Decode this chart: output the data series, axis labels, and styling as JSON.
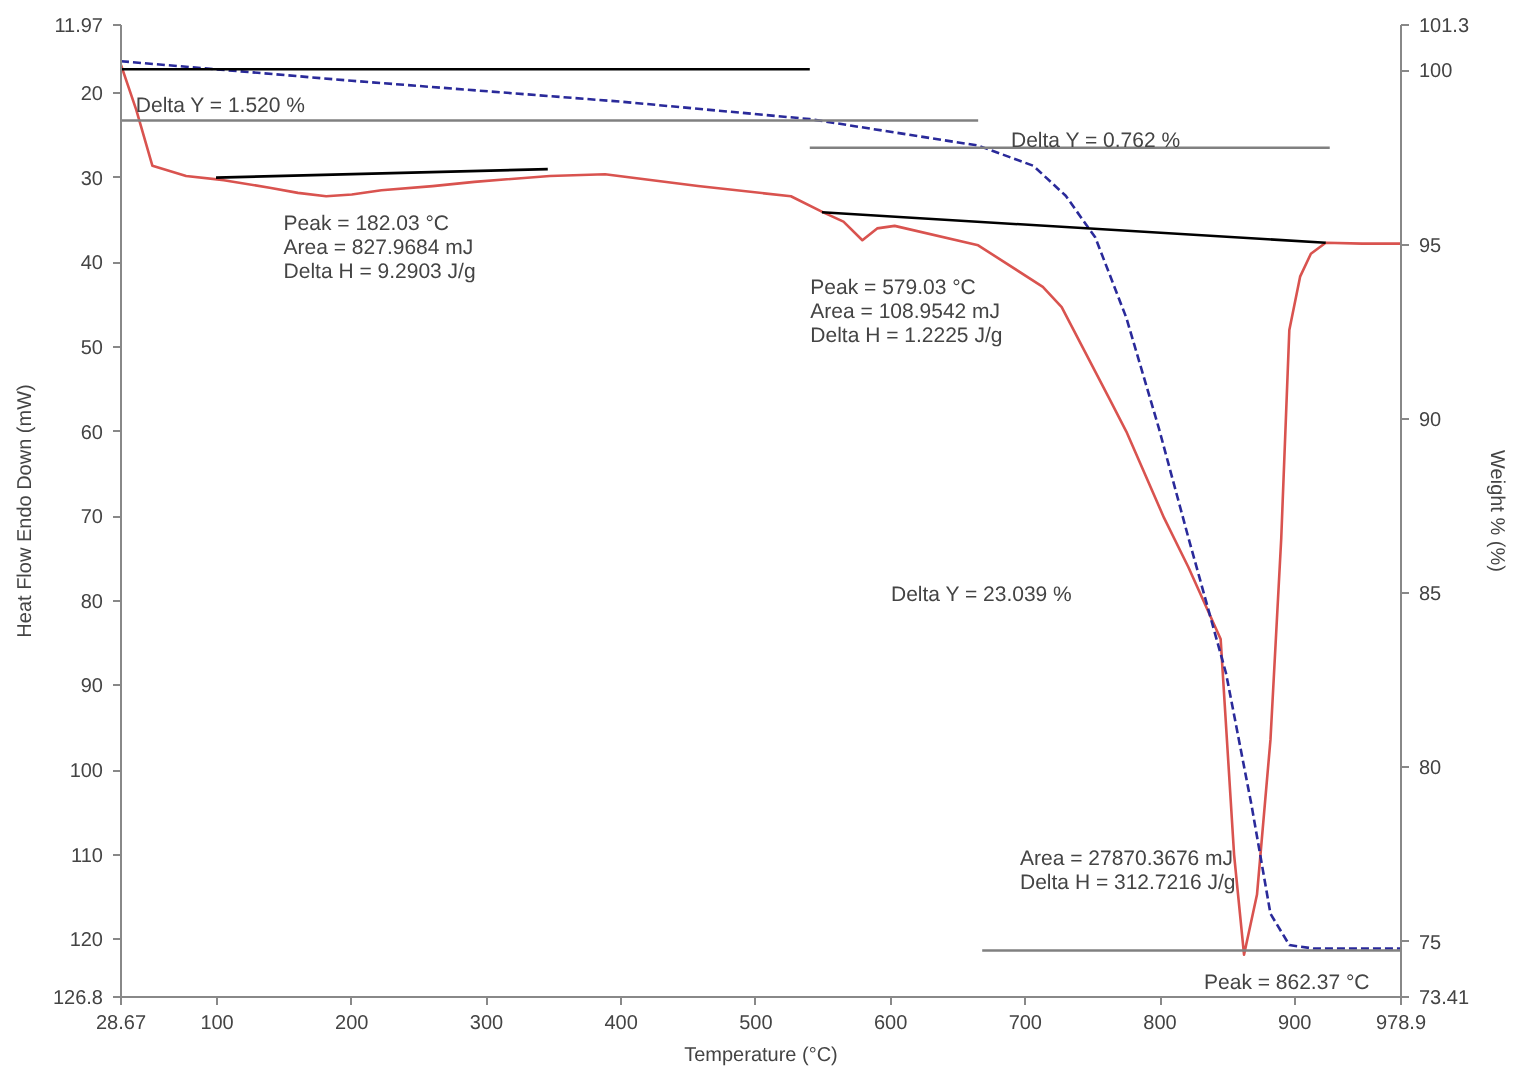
{
  "chart_data": {
    "type": "line",
    "xlabel": "Temperature (°C)",
    "ylabel": "Heat Flow Endo Down (mW)",
    "y2label": "Weight % (%)",
    "xlim": [
      28.67,
      978.9
    ],
    "xticks": [
      28.67,
      100,
      200,
      300,
      400,
      500,
      600,
      700,
      800,
      900,
      978.9
    ],
    "ylim": [
      126.8,
      11.97
    ],
    "yticks": [
      11.97,
      20,
      30,
      40,
      50,
      60,
      70,
      80,
      90,
      100,
      110,
      120,
      126.8
    ],
    "y2lim": [
      73.41,
      101.3
    ],
    "y2ticks": [
      73.41,
      75,
      80,
      85,
      90,
      95,
      100,
      101.3
    ],
    "grid": false,
    "series": [
      {
        "color": "#d9534f",
        "line_style": "solid",
        "x": [
          28.67,
          40,
          52,
          77,
          105,
          139,
          160,
          181,
          200,
          222,
          260,
          291,
          347,
          388,
          457,
          526,
          550,
          565,
          579.03,
          590,
          603,
          665,
          713,
          727,
          762,
          775,
          803,
          821,
          845,
          855,
          862.37,
          872,
          882,
          890,
          896,
          904,
          912,
          923,
          950,
          978.9
        ],
        "values": [
          16.7,
          22,
          28.6,
          29.8,
          30.3,
          31.2,
          31.8,
          32.2,
          32.0,
          31.5,
          31.0,
          30.5,
          29.8,
          29.6,
          31,
          32.2,
          34.1,
          35.2,
          37.4,
          36.0,
          35.7,
          38,
          42.9,
          45.3,
          56,
          60,
          70.2,
          76,
          84.5,
          110,
          121.8,
          114.7,
          96.4,
          72.6,
          48,
          41.7,
          39,
          37.7,
          37.8,
          37.8
        ]
      },
      {
        "color": "#2a2a9a",
        "line_style": "dashed",
        "axis": "y2",
        "x": [
          28.67,
          200,
          400,
          540,
          665,
          706,
          730,
          752,
          775,
          799,
          821,
          849,
          868,
          882,
          896,
          914,
          978.9
        ],
        "values": [
          100.26,
          99.7,
          99.1,
          98.6,
          97.84,
          97.26,
          96.4,
          95.2,
          92.9,
          89.75,
          86.6,
          82.7,
          78.9,
          75.8,
          74.9,
          74.8,
          74.8
        ]
      },
      {
        "color": "#000000",
        "line_style": "solid",
        "axis": "y2",
        "x": [
          28.67,
          540
        ],
        "values": [
          100.03,
          100.03
        ]
      },
      {
        "color": "#808080",
        "line_style": "solid",
        "axis": "y2",
        "x": [
          28.67,
          665
        ],
        "values": [
          98.56,
          98.56
        ]
      },
      {
        "color": "#808080",
        "line_style": "solid",
        "axis": "y2",
        "x": [
          540,
          926
        ],
        "values": [
          97.78,
          97.78
        ]
      },
      {
        "color": "#000000",
        "line_style": "solid",
        "x": [
          99.2,
          345.5
        ],
        "values": [
          30.0,
          29.0
        ]
      },
      {
        "color": "#000000",
        "line_style": "solid",
        "x": [
          549,
          923
        ],
        "values": [
          34.1,
          37.7
        ]
      },
      {
        "color": "#808080",
        "line_style": "solid",
        "x": [
          668,
          978.9
        ],
        "values": [
          121.3,
          121.3
        ]
      }
    ],
    "annotations": [
      {
        "text": "Delta Y = 1.520 %",
        "x": 39.7,
        "y": 21.5
      },
      "Delta Y = 0.762 %",
      "Delta Y = 23.039 %",
      {
        "text": "Peak = 182.03 °C\nArea = 827.9684 mJ\nDelta H = 9.2903 J/g",
        "x": 182.03,
        "y": 32.2
      },
      {
        "text": "Peak = 579.03 °C\nArea = 108.9542 mJ\nDelta H = 1.2225 J/g",
        "x": 579.03,
        "y": 37.4
      },
      {
        "text": "Area = 27870.3676 mJ\nDelta H = 312.7216 J/g",
        "x": 862.37,
        "y": 121.8
      },
      {
        "text": "Peak = 862.37 °C",
        "x": 862.37,
        "y": 121.8
      }
    ]
  }
}
